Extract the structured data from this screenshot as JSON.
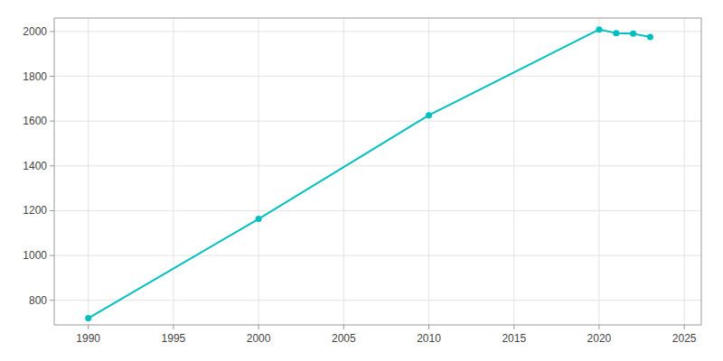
{
  "chart_data": {
    "type": "line",
    "x": [
      1990,
      2000,
      2010,
      2020,
      2021,
      2022,
      2023
    ],
    "values": [
      720,
      1163,
      1626,
      2009,
      1993,
      1990,
      1975
    ],
    "color": "#00BFBF",
    "marker": "circle",
    "xlim": [
      1988,
      2026
    ],
    "ylim": [
      690,
      2060
    ],
    "xticks": [
      1990,
      1995,
      2000,
      2005,
      2010,
      2015,
      2020,
      2025
    ],
    "yticks": [
      800,
      1000,
      1200,
      1400,
      1600,
      1800,
      2000
    ],
    "grid": true
  }
}
